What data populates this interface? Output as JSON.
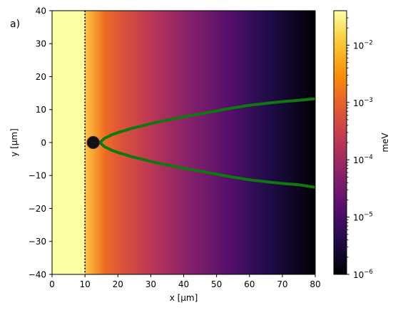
{
  "panel_label": "a)",
  "chart_data": {
    "type": "heatmap",
    "title": "",
    "xlabel": "x [μm]",
    "ylabel": "y [μm]",
    "xlim": [
      0,
      80
    ],
    "ylim": [
      -40,
      40
    ],
    "xticks": [
      0,
      10,
      20,
      30,
      40,
      50,
      60,
      70,
      80
    ],
    "xtick_labels": [
      "0",
      "10",
      "20",
      "30",
      "40",
      "50",
      "60",
      "70",
      "80"
    ],
    "yticks": [
      40,
      30,
      20,
      10,
      0,
      -10,
      -20,
      -30,
      -40
    ],
    "ytick_labels": [
      "40",
      "30",
      "20",
      "10",
      "0",
      "−10",
      "−20",
      "−30",
      "−40"
    ],
    "colormap": "inferno",
    "colorbar": {
      "label": "meV",
      "scale": "log",
      "range": [
        1e-06,
        0.04
      ],
      "ticks": [
        1e-06,
        1e-05,
        0.0001,
        0.001,
        0.01
      ],
      "tick_bases": [
        "10",
        "10",
        "10",
        "10",
        "10"
      ],
      "tick_exponents": [
        "−6",
        "−5",
        "−4",
        "−3",
        "−2"
      ]
    },
    "field": {
      "saturated_region_x": [
        0,
        10
      ],
      "saturated_value": 0.04,
      "value_at_x10": 0.004,
      "value_at_x80": 1e-06,
      "falloff_from_x": 10
    },
    "annotations": {
      "dotted_vertical_line_x": 10,
      "dotted_line_color": "#000000",
      "dot": {
        "x": 12.5,
        "y": 0,
        "color": "#111111"
      }
    },
    "series": [
      {
        "color": "#117711",
        "x": [
          14.5,
          16,
          18,
          20,
          22,
          25,
          28,
          30,
          33,
          36,
          40,
          45,
          50,
          55,
          60,
          65,
          70,
          75,
          80
        ],
        "y": [
          0,
          1.3,
          2.3,
          3.0,
          3.6,
          4.5,
          5.2,
          5.7,
          6.4,
          7.0,
          7.8,
          8.7,
          9.6,
          10.5,
          11.3,
          11.9,
          12.4,
          12.8,
          13.3
        ]
      },
      {
        "color": "#117711",
        "x": [
          14.5,
          16,
          18,
          20,
          22,
          25,
          28,
          30,
          33,
          36,
          40,
          45,
          50,
          55,
          60,
          65,
          70,
          75,
          80
        ],
        "y": [
          0,
          -1.3,
          -2.3,
          -3.0,
          -3.6,
          -4.5,
          -5.2,
          -5.7,
          -6.4,
          -7.0,
          -7.8,
          -8.7,
          -9.6,
          -10.5,
          -11.3,
          -11.9,
          -12.4,
          -12.8,
          -13.6
        ]
      }
    ]
  }
}
